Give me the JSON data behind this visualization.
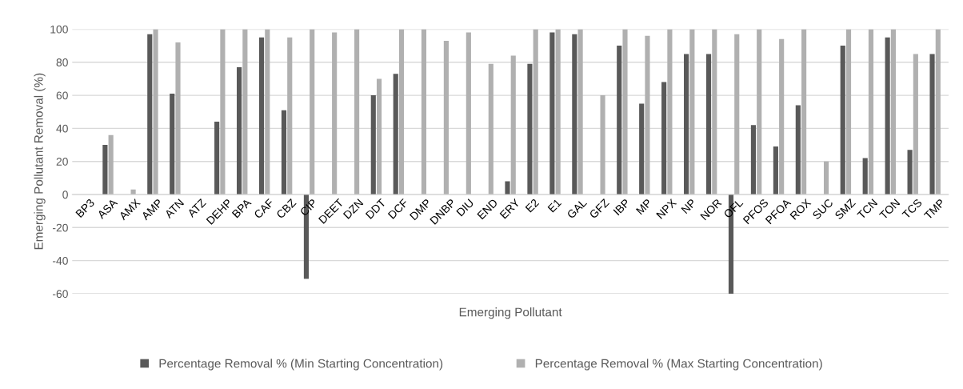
{
  "chart_data": {
    "type": "bar",
    "xlabel": "Emerging Pollutant",
    "ylabel": "Emerging Pollutant Removal (%)",
    "categories": [
      "BP3",
      "ASA",
      "AMX",
      "AMP",
      "ATN",
      "ATZ",
      "DEHP",
      "BPA",
      "CAF",
      "CBZ",
      "CIP",
      "DEET",
      "DZN",
      "DDT",
      "DCF",
      "DMP",
      "DNBP",
      "DIU",
      "END",
      "ERY",
      "E2",
      "E1",
      "GAL",
      "GFZ",
      "IBP",
      "MP",
      "NPX",
      "NP",
      "NOR",
      "OFL",
      "PFOS",
      "PFOA",
      "ROX",
      "SUC",
      "SMZ",
      "TCN",
      "TON",
      "TCS",
      "TMP"
    ],
    "series": [
      {
        "name": "Percentage Removal % (Min Starting Concentration)",
        "color": "#595959",
        "values": [
          null,
          30,
          null,
          97,
          61,
          null,
          44,
          77,
          95,
          51,
          -51,
          null,
          null,
          60,
          73,
          null,
          null,
          null,
          null,
          8,
          79,
          98,
          97,
          null,
          90,
          55,
          68,
          85,
          85,
          -60,
          42,
          29,
          54,
          null,
          90,
          22,
          95,
          27,
          85
        ]
      },
      {
        "name": "Percentage Removal % (Max Starting Concentration)",
        "color": "#b0b0b0",
        "values": [
          null,
          36,
          3,
          100,
          92,
          null,
          100,
          100,
          100,
          95,
          100,
          98,
          100,
          70,
          100,
          100,
          93,
          98,
          79,
          84,
          100,
          100,
          100,
          60,
          100,
          96,
          100,
          100,
          100,
          97,
          100,
          94,
          100,
          20,
          100,
          100,
          100,
          85,
          100
        ]
      }
    ],
    "ylim": [
      -60,
      100
    ],
    "yticks": [
      -60,
      -40,
      -20,
      0,
      20,
      40,
      60,
      80,
      100
    ],
    "grid": "y",
    "legend": "bottom"
  }
}
